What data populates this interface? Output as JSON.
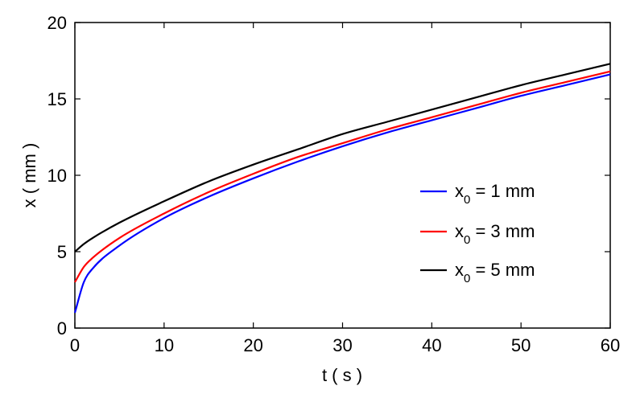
{
  "chart_data": {
    "type": "line",
    "xlabel": "t ( s )",
    "ylabel": "x ( mm )",
    "xlim": [
      0,
      60
    ],
    "ylim": [
      0,
      20
    ],
    "xticks": [
      0,
      10,
      20,
      30,
      40,
      50,
      60
    ],
    "yticks": [
      0,
      5,
      10,
      15,
      20
    ],
    "grid": false,
    "legend_position": "right",
    "x": [
      0,
      1,
      2,
      5,
      10,
      15,
      20,
      25,
      30,
      35,
      40,
      45,
      50,
      55,
      60
    ],
    "series": [
      {
        "name": "x0 = 1 mm",
        "legend_base": "x",
        "legend_sub": "0",
        "legend_rest": " = 1 mm",
        "color": "#0000ff",
        "values": [
          1.0,
          3.0,
          3.9,
          5.4,
          7.2,
          8.6,
          9.8,
          10.9,
          11.9,
          12.8,
          13.6,
          14.4,
          15.2,
          15.9,
          16.6
        ]
      },
      {
        "name": "x0 = 3 mm",
        "legend_base": "x",
        "legend_sub": "0",
        "legend_rest": " = 3 mm",
        "color": "#ff0000",
        "values": [
          3.0,
          4.0,
          4.6,
          5.9,
          7.5,
          8.9,
          10.1,
          11.2,
          12.1,
          13.0,
          13.8,
          14.6,
          15.4,
          16.1,
          16.8
        ]
      },
      {
        "name": "x0 = 5 mm",
        "legend_base": "x",
        "legend_sub": "0",
        "legend_rest": " = 5 mm",
        "color": "#000000",
        "values": [
          5.0,
          5.5,
          5.9,
          6.9,
          8.3,
          9.6,
          10.7,
          11.7,
          12.7,
          13.5,
          14.3,
          15.1,
          15.9,
          16.6,
          17.3
        ]
      }
    ]
  }
}
